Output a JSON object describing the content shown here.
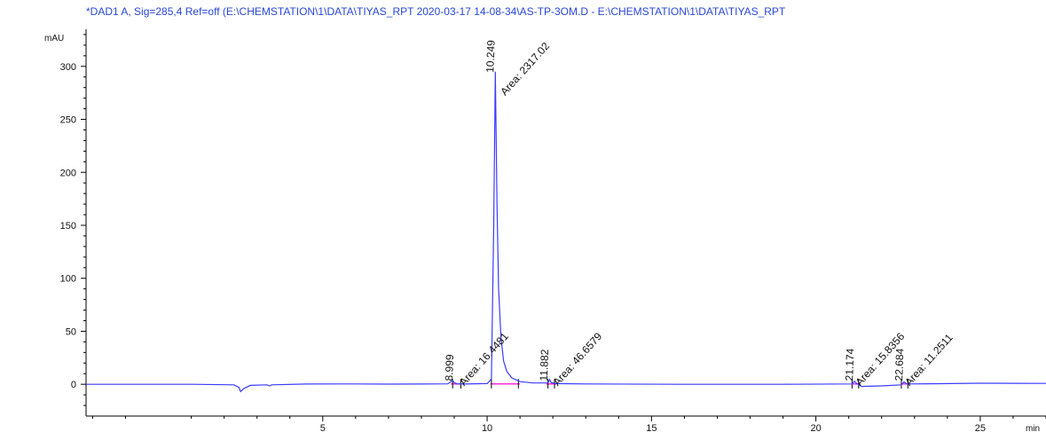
{
  "chart_data": {
    "type": "line",
    "title": "*DAD1 A, Sig=285,4 Ref=off (E:\\CHEMSTATION\\1\\DATA\\TIYAS_RPT 2020-03-17 14-08-34\\AS-TP-3OM.D - E:\\CHEMSTATION\\1\\DATA\\TIYAS_RPT",
    "ylabel": "mAU",
    "xlabel": "min",
    "xlim": [
      -2.2,
      27
    ],
    "ylim": [
      -30,
      335
    ],
    "xticks": [
      5,
      10,
      15,
      20,
      25
    ],
    "yticks": [
      0,
      50,
      100,
      150,
      200,
      250,
      300
    ],
    "colors": {
      "signal": "#3b3bff",
      "baseline": "#ff2bd6",
      "axis": "#000000",
      "title": "#2a47d8"
    },
    "series": [
      {
        "x": [
          -2.2,
          1.0,
          2.3,
          2.45,
          2.5,
          2.6,
          2.8,
          3.3,
          3.38,
          3.45,
          4.5,
          6.0,
          7.0,
          8.0,
          8.8,
          8.95,
          9.0,
          9.08,
          9.3,
          10.0,
          10.13,
          10.2,
          10.249,
          10.3,
          10.35,
          10.42,
          10.5,
          10.6,
          10.75,
          11.0,
          11.4,
          11.85,
          11.9,
          11.95,
          12.1,
          13.0,
          16.0,
          19.0,
          21.1,
          21.17,
          21.25,
          21.4,
          22.0,
          22.6,
          22.68,
          22.78,
          23.5,
          25.0,
          27.0
        ],
        "y": [
          0,
          0,
          -0.5,
          -3,
          -7,
          -4,
          -1,
          -0.5,
          -1.5,
          -0.5,
          0.2,
          0.3,
          0.1,
          0.2,
          0.4,
          3.5,
          1.5,
          0.5,
          0.2,
          0.6,
          5,
          150,
          295,
          170,
          90,
          45,
          22,
          12,
          6,
          2.5,
          1.2,
          1.2,
          4.5,
          1.5,
          0.6,
          0.3,
          0,
          0,
          0.3,
          2.8,
          0.5,
          -2,
          -1.5,
          -0.5,
          2.2,
          0.3,
          0.5,
          1,
          0.8
        ]
      }
    ],
    "peaks": [
      {
        "rt": "8.999",
        "area": "Area: 16.4481"
      },
      {
        "rt": "10.249",
        "area": "Area: 2317.02"
      },
      {
        "rt": "11.882",
        "area": "Area: 46.6579"
      },
      {
        "rt": "21.174",
        "area": "Area: 15.8356"
      },
      {
        "rt": "22.684",
        "area": "Area: 11.2511"
      }
    ]
  }
}
